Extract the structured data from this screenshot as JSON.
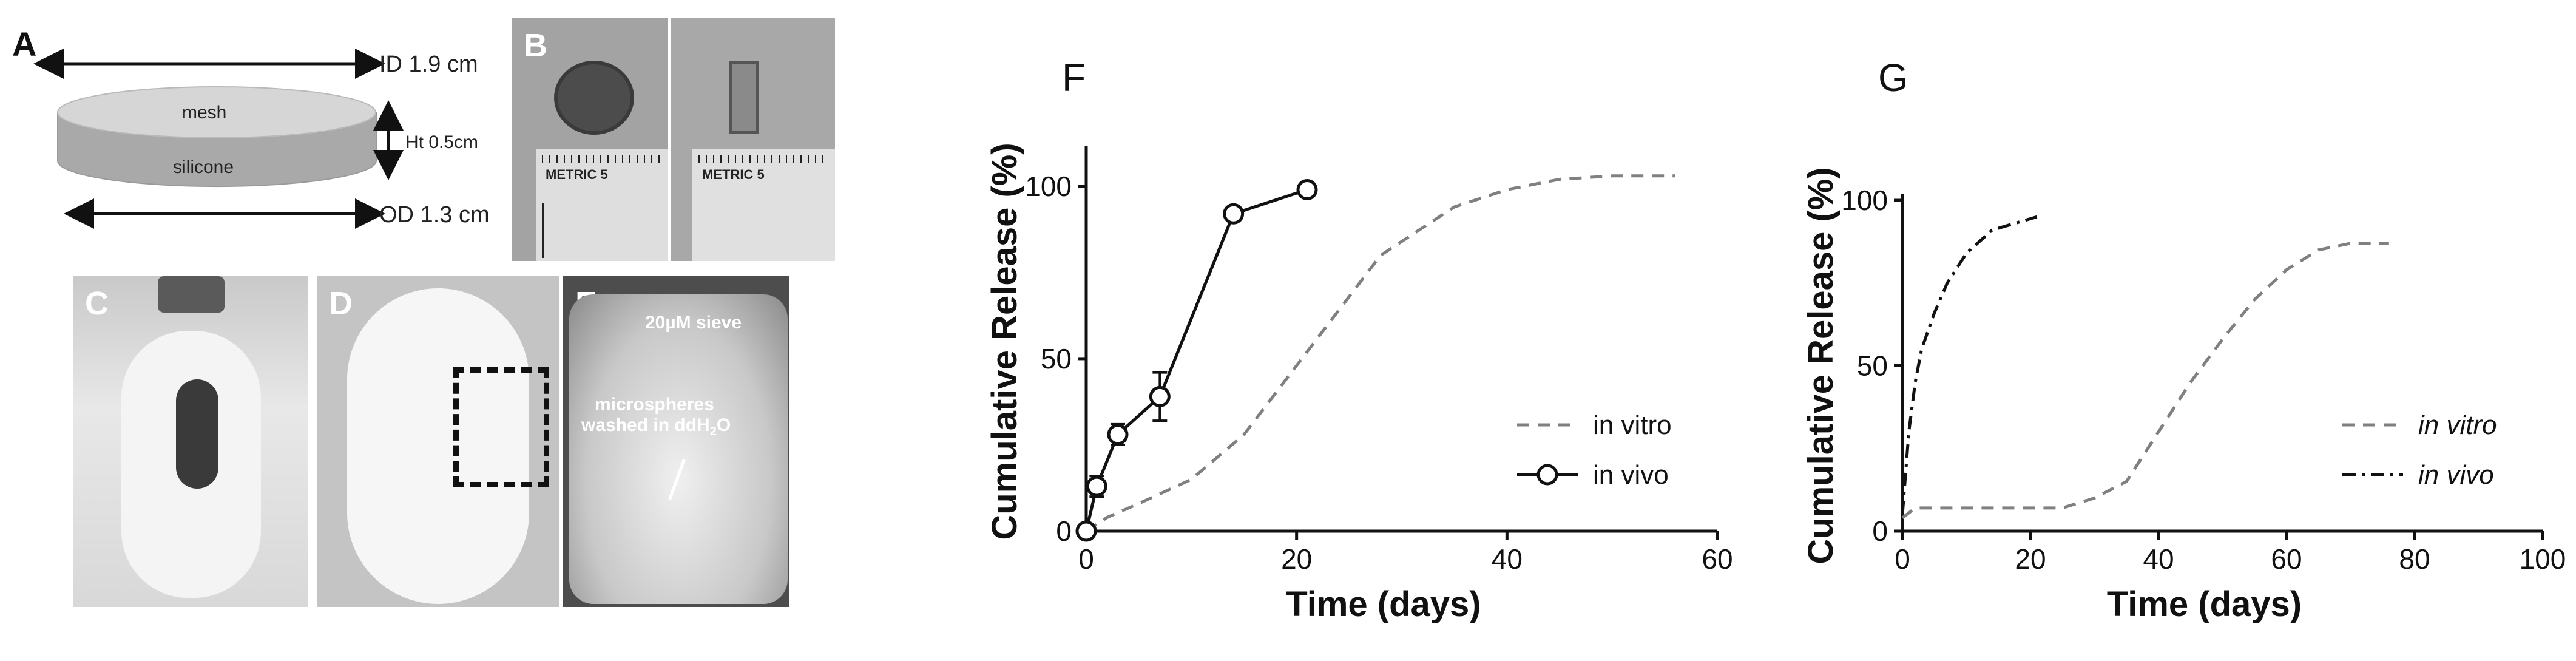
{
  "panel_A": {
    "letter": "A",
    "id_label": "ID 1.9 cm",
    "ht_label": "Ht 0.5cm",
    "od_label": "OD 1.3 cm",
    "top_label": "mesh",
    "side_label": "silicone"
  },
  "panel_B": {
    "letter": "B",
    "ruler_text_1": "METRIC 5",
    "ruler_text_2": "METRIC 5"
  },
  "panel_C": {
    "letter": "C"
  },
  "panel_D": {
    "letter": "D"
  },
  "panel_E": {
    "letter": "E",
    "sieve_label": "20µM sieve",
    "line1": "microspheres",
    "line2": "washed in ddH",
    "subscript": "2",
    "line2_end": "O"
  },
  "chart_data": [
    {
      "letter": "F",
      "type": "line",
      "xlabel": "Time (days)",
      "ylabel": "Cumulative Release (%)",
      "xlim": [
        0,
        60
      ],
      "ylim": [
        0,
        110
      ],
      "xticks": [
        "0",
        "20",
        "40",
        "60"
      ],
      "yticks": [
        "0",
        "50",
        "100"
      ],
      "xtick_values": [
        0,
        20,
        40,
        60
      ],
      "ytick_values": [
        0,
        50,
        100
      ],
      "legend": [
        "in vitro",
        "in vivo"
      ],
      "legend_position": "bottom-right",
      "series": [
        {
          "name": "in vitro",
          "style": "dashed",
          "color": "#808080",
          "x": [
            0,
            2,
            5,
            10,
            15,
            20,
            25,
            28,
            35,
            40,
            45,
            50,
            56
          ],
          "y": [
            0,
            4,
            8,
            15,
            28,
            48,
            68,
            80,
            94,
            99,
            102,
            103,
            103
          ]
        },
        {
          "name": "in vivo",
          "style": "solid-circle",
          "color": "#111111",
          "x": [
            0,
            1,
            3,
            7,
            14,
            21
          ],
          "y": [
            0,
            13,
            28,
            39,
            92,
            99
          ],
          "err": [
            0,
            3,
            3,
            7,
            0,
            0
          ]
        }
      ]
    },
    {
      "letter": "G",
      "type": "line",
      "xlabel": "Time (days)",
      "ylabel": "Cumulative Release (%)",
      "xlim": [
        0,
        100
      ],
      "ylim": [
        0,
        100
      ],
      "xticks": [
        "0",
        "20",
        "40",
        "60",
        "80",
        "100"
      ],
      "yticks": [
        "0",
        "50",
        "100"
      ],
      "xtick_values": [
        0,
        20,
        40,
        60,
        80,
        100
      ],
      "ytick_values": [
        0,
        50,
        100
      ],
      "legend": [
        "in vitro",
        "in vivo"
      ],
      "legend_position": "bottom-right",
      "series": [
        {
          "name": "in vitro",
          "style": "dashed",
          "color": "#808080",
          "x": [
            0,
            2,
            10,
            25,
            30,
            35,
            40,
            45,
            50,
            55,
            60,
            65,
            70,
            76
          ],
          "y": [
            4,
            7,
            7,
            7,
            10,
            15,
            30,
            45,
            58,
            70,
            79,
            85,
            87,
            87
          ]
        },
        {
          "name": "in vivo",
          "style": "dashdot",
          "color": "#111111",
          "x": [
            0,
            1,
            2,
            3,
            5,
            7,
            10,
            14,
            21
          ],
          "y": [
            5,
            30,
            45,
            55,
            66,
            75,
            84,
            91,
            95
          ]
        }
      ]
    }
  ]
}
